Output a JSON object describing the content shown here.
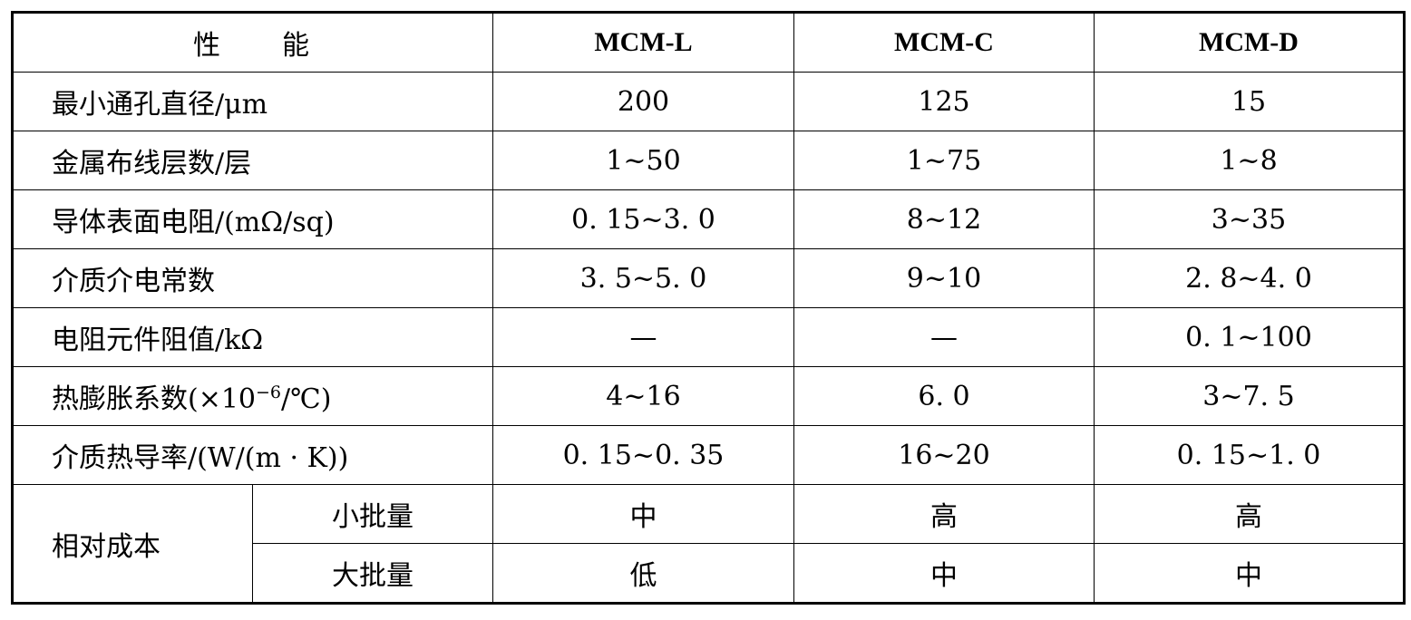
{
  "header": {
    "property_part1": "性",
    "property_part2": "能",
    "models": [
      "MCM-L",
      "MCM-C",
      "MCM-D"
    ]
  },
  "rows": [
    {
      "property": "最小通孔直径/μm",
      "values": [
        "200",
        "125",
        "15"
      ]
    },
    {
      "property": "金属布线层数/层",
      "values": [
        "1~50",
        "1~75",
        "1~8"
      ]
    },
    {
      "property": "导体表面电阻/(mΩ/sq)",
      "values": [
        "0. 15~3. 0",
        "8~12",
        "3~35"
      ]
    },
    {
      "property": "介质介电常数",
      "values": [
        "3. 5~5. 0",
        "9~10",
        "2. 8~4. 0"
      ]
    },
    {
      "property": "电阻元件阻值/kΩ",
      "values": [
        "—",
        "—",
        "0. 1~100"
      ]
    },
    {
      "property_pre": "热膨胀系数(×10",
      "property_sup": "−6",
      "property_post": "/℃)",
      "values": [
        "4~16",
        "6. 0",
        "3~7. 5"
      ]
    },
    {
      "property": "介质热导率/(W/(m · K))",
      "values": [
        "0. 15~0. 35",
        "16~20",
        "0. 15~1. 0"
      ]
    }
  ],
  "cost": {
    "label": "相对成本",
    "rows": [
      {
        "sub": "小批量",
        "values": [
          "中",
          "高",
          "高"
        ]
      },
      {
        "sub": "大批量",
        "values": [
          "低",
          "中",
          "中"
        ]
      }
    ]
  }
}
